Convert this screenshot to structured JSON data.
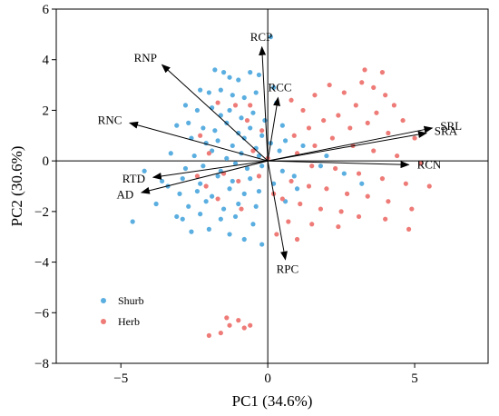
{
  "chart_data": {
    "type": "scatter",
    "title": "",
    "xlabel": "PC1 (34.6%)",
    "ylabel": "PC2 (30.6%)",
    "xlim": [
      -7.2,
      7.5
    ],
    "ylim": [
      -8,
      6
    ],
    "xticks": [
      -5,
      0,
      5
    ],
    "yticks": [
      -8,
      -6,
      -4,
      -2,
      0,
      2,
      4,
      6
    ],
    "xtick_labels": [
      "−5",
      "0",
      "5"
    ],
    "ytick_labels": [
      "−8",
      "−6",
      "−4",
      "−2",
      "0",
      "2",
      "4",
      "6"
    ],
    "grid": false,
    "legend_placement": "bottom-left",
    "series": [
      {
        "name": "Shurb",
        "color": "#5aaee0",
        "points": [
          [
            -1.8,
            3.6
          ],
          [
            -1.5,
            3.5
          ],
          [
            -1.3,
            3.3
          ],
          [
            -1.0,
            3.2
          ],
          [
            -0.6,
            3.5
          ],
          [
            -0.3,
            3.4
          ],
          [
            0.1,
            4.9
          ],
          [
            -2.3,
            2.8
          ],
          [
            -2.0,
            2.7
          ],
          [
            -1.6,
            2.8
          ],
          [
            -1.2,
            2.6
          ],
          [
            -0.8,
            2.5
          ],
          [
            -0.4,
            2.7
          ],
          [
            0.2,
            2.9
          ],
          [
            -2.8,
            2.2
          ],
          [
            -2.4,
            2.0
          ],
          [
            -1.9,
            2.1
          ],
          [
            -1.6,
            1.8
          ],
          [
            -1.3,
            2.0
          ],
          [
            -0.9,
            1.7
          ],
          [
            -0.5,
            1.9
          ],
          [
            0.3,
            2.3
          ],
          [
            -3.1,
            1.4
          ],
          [
            -2.7,
            1.5
          ],
          [
            -2.2,
            1.3
          ],
          [
            -1.8,
            1.2
          ],
          [
            -1.4,
            1.5
          ],
          [
            -1.0,
            1.1
          ],
          [
            -0.6,
            1.3
          ],
          [
            -0.2,
            1.0
          ],
          [
            0.5,
            1.4
          ],
          [
            -2.6,
            0.9
          ],
          [
            -2.1,
            0.7
          ],
          [
            -1.7,
            0.8
          ],
          [
            -1.2,
            0.6
          ],
          [
            -0.8,
            0.9
          ],
          [
            -0.4,
            0.5
          ],
          [
            0.1,
            0.7
          ],
          [
            0.6,
            0.8
          ],
          [
            -3.3,
            0.3
          ],
          [
            -2.5,
            0.2
          ],
          [
            -1.9,
            0.4
          ],
          [
            -1.4,
            0.1
          ],
          [
            -0.9,
            0.3
          ],
          [
            -0.3,
            0.2
          ],
          [
            0.4,
            0.4
          ],
          [
            1.2,
            0.6
          ],
          [
            -2.8,
            -0.3
          ],
          [
            -2.2,
            -0.2
          ],
          [
            -1.6,
            -0.4
          ],
          [
            -1.1,
            -0.1
          ],
          [
            -0.7,
            -0.3
          ],
          [
            -0.2,
            -0.2
          ],
          [
            0.5,
            -0.4
          ],
          [
            1.8,
            -0.2
          ],
          [
            -3.6,
            -0.8
          ],
          [
            -2.9,
            -0.7
          ],
          [
            -2.3,
            -0.9
          ],
          [
            -1.7,
            -0.6
          ],
          [
            -1.2,
            -0.8
          ],
          [
            -0.6,
            -0.7
          ],
          [
            0.2,
            -0.9
          ],
          [
            2.6,
            -0.5
          ],
          [
            -3.0,
            -1.3
          ],
          [
            -2.4,
            -1.2
          ],
          [
            -1.9,
            -1.4
          ],
          [
            -1.3,
            -1.1
          ],
          [
            -0.8,
            -1.3
          ],
          [
            -0.3,
            -1.2
          ],
          [
            1.0,
            -1.1
          ],
          [
            3.2,
            -0.9
          ],
          [
            -3.8,
            -1.7
          ],
          [
            -2.7,
            -1.8
          ],
          [
            -2.1,
            -1.6
          ],
          [
            -1.5,
            -1.9
          ],
          [
            -1.0,
            -1.7
          ],
          [
            -0.4,
            -1.8
          ],
          [
            0.6,
            -1.6
          ],
          [
            -4.6,
            -2.4
          ],
          [
            -3.1,
            -2.2
          ],
          [
            -2.9,
            -2.3
          ],
          [
            -2.3,
            -2.1
          ],
          [
            -1.6,
            -2.3
          ],
          [
            -1.1,
            -2.2
          ],
          [
            -0.5,
            -2.5
          ],
          [
            -2.6,
            -2.8
          ],
          [
            -2.0,
            -2.7
          ],
          [
            -1.3,
            -2.9
          ],
          [
            -0.8,
            -3.1
          ],
          [
            -0.2,
            -3.3
          ],
          [
            -3.4,
            -1.0
          ],
          [
            -4.2,
            -0.4
          ],
          [
            2.0,
            0.2
          ],
          [
            0.9,
            -0.6
          ],
          [
            -0.1,
            1.6
          ]
        ]
      },
      {
        "name": "Herb",
        "color": "#ee7b77",
        "points": [
          [
            -1.7,
            2.3
          ],
          [
            -1.1,
            2.2
          ],
          [
            -0.7,
            1.6
          ],
          [
            -0.2,
            1.2
          ],
          [
            0.8,
            2.4
          ],
          [
            1.2,
            2.0
          ],
          [
            1.6,
            2.6
          ],
          [
            2.1,
            3.0
          ],
          [
            2.6,
            2.7
          ],
          [
            3.2,
            3.1
          ],
          [
            3.6,
            2.9
          ],
          [
            3.9,
            3.5
          ],
          [
            3.3,
            3.6
          ],
          [
            4.0,
            2.6
          ],
          [
            4.3,
            2.2
          ],
          [
            3.7,
            1.9
          ],
          [
            3.0,
            2.2
          ],
          [
            2.4,
            1.8
          ],
          [
            1.9,
            1.6
          ],
          [
            1.4,
            1.3
          ],
          [
            0.9,
            1.0
          ],
          [
            2.8,
            1.3
          ],
          [
            3.4,
            1.5
          ],
          [
            4.1,
            1.1
          ],
          [
            4.6,
            1.6
          ],
          [
            5.0,
            0.9
          ],
          [
            2.2,
            0.9
          ],
          [
            1.6,
            0.6
          ],
          [
            2.9,
            0.6
          ],
          [
            3.6,
            0.4
          ],
          [
            4.4,
            0.2
          ],
          [
            5.2,
            -0.1
          ],
          [
            1.0,
            0.3
          ],
          [
            1.5,
            -0.2
          ],
          [
            2.3,
            -0.3
          ],
          [
            3.1,
            -0.5
          ],
          [
            3.9,
            -0.7
          ],
          [
            4.7,
            -0.9
          ],
          [
            5.5,
            -1.0
          ],
          [
            0.8,
            -0.8
          ],
          [
            1.4,
            -1.0
          ],
          [
            2.0,
            -1.1
          ],
          [
            2.7,
            -1.3
          ],
          [
            3.4,
            -1.4
          ],
          [
            4.1,
            -1.6
          ],
          [
            4.9,
            -1.9
          ],
          [
            0.5,
            -1.5
          ],
          [
            1.1,
            -1.7
          ],
          [
            1.8,
            -1.9
          ],
          [
            2.5,
            -2.0
          ],
          [
            3.1,
            -2.2
          ],
          [
            4.0,
            -2.3
          ],
          [
            4.8,
            -2.7
          ],
          [
            0.7,
            -2.4
          ],
          [
            1.5,
            -2.5
          ],
          [
            2.4,
            -2.6
          ],
          [
            0.3,
            -2.9
          ],
          [
            1.0,
            -3.1
          ],
          [
            -2.3,
            1.0
          ],
          [
            -2.0,
            0.3
          ],
          [
            -1.5,
            -0.5
          ],
          [
            -1.0,
            -0.8
          ],
          [
            -2.1,
            -1.0
          ],
          [
            -0.3,
            -0.6
          ],
          [
            -0.5,
            0.4
          ],
          [
            0.0,
            0.1
          ],
          [
            -0.9,
            -1.9
          ],
          [
            -1.7,
            -1.5
          ],
          [
            -2.4,
            -0.6
          ],
          [
            0.2,
            -1.3
          ],
          [
            -0.6,
            2.2
          ],
          [
            -1.4,
            -6.2
          ],
          [
            -1.0,
            -6.3
          ],
          [
            -1.3,
            -6.5
          ],
          [
            -0.8,
            -6.6
          ],
          [
            -1.6,
            -6.8
          ],
          [
            -2.0,
            -6.9
          ],
          [
            -0.6,
            -6.5
          ]
        ]
      }
    ],
    "vectors": [
      {
        "name": "RNP",
        "x": -3.6,
        "y": 3.8
      },
      {
        "name": "RCP",
        "x": -0.2,
        "y": 4.5
      },
      {
        "name": "RCC",
        "x": 0.35,
        "y": 2.5
      },
      {
        "name": "RNC",
        "x": -4.7,
        "y": 1.5
      },
      {
        "name": "SRL",
        "x": 5.6,
        "y": 1.3
      },
      {
        "name": "SRA",
        "x": 5.4,
        "y": 1.1
      },
      {
        "name": "RCN",
        "x": 4.8,
        "y": -0.15
      },
      {
        "name": "RTD",
        "x": -3.9,
        "y": -0.65
      },
      {
        "name": "AD",
        "x": -4.3,
        "y": -1.25
      },
      {
        "name": "RPC",
        "x": 0.6,
        "y": -3.9
      }
    ]
  }
}
